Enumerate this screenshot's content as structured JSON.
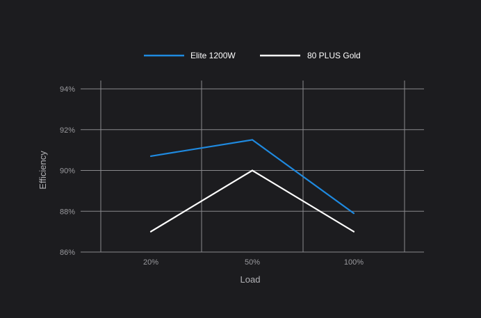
{
  "chart_data": {
    "type": "line",
    "xlabel": "Load",
    "ylabel": "Efficiency",
    "categories": [
      "20%",
      "50%",
      "100%"
    ],
    "ylim": [
      86,
      94
    ],
    "y_ticks": [
      "86%",
      "88%",
      "90%",
      "92%",
      "94%"
    ],
    "grid": true,
    "legend_position": "top-center",
    "series": [
      {
        "name": "Elite 1200W",
        "color": "#1f8ae0",
        "values": [
          90.7,
          91.5,
          87.9
        ]
      },
      {
        "name": "80 PLUS Gold",
        "color": "#ffffff",
        "values": [
          87.0,
          90.0,
          87.0
        ]
      }
    ],
    "colors": {
      "background": "#1c1c1f",
      "grid": "#8a8a8e",
      "tick_text": "#9a9a9e"
    }
  }
}
